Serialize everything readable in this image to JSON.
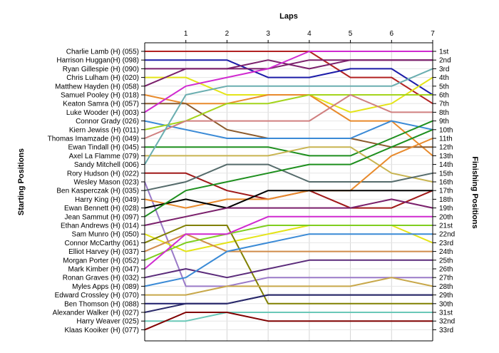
{
  "chart_data": {
    "type": "line",
    "title": "",
    "xlabel": "Laps",
    "ylabel_left": "Starting Positions",
    "ylabel_right": "Finishing Positions",
    "x": [
      0,
      1,
      2,
      3,
      4,
      5,
      6,
      7
    ],
    "x_ticks": [
      "1",
      "2",
      "3",
      "4",
      "5",
      "6",
      "7"
    ],
    "xlim": [
      0,
      7
    ],
    "ylim": [
      1,
      33
    ],
    "grid": true,
    "finishing_labels": [
      "1st",
      "2nd",
      "3rd",
      "4th",
      "5th",
      "6th",
      "7th",
      "8th",
      "9th",
      "10th",
      "11th",
      "12th",
      "13th",
      "14th",
      "15th",
      "16th",
      "17th",
      "18th",
      "19th",
      "20th",
      "21st",
      "22nd",
      "23rd",
      "24th",
      "25th",
      "26th",
      "27th",
      "28th",
      "29th",
      "30th",
      "31st",
      "32nd",
      "33rd"
    ],
    "series": [
      {
        "name": "Charlie Lamb (H) (055)",
        "color": "#b22222",
        "positions": [
          1,
          1,
          1,
          1,
          1,
          4,
          4,
          7
        ]
      },
      {
        "name": "Harrison Huggan(H) (098)",
        "color": "#1c1ca8",
        "positions": [
          2,
          2,
          2,
          4,
          4,
          3,
          3,
          6
        ]
      },
      {
        "name": "Ryan Gillespie (H) (090)",
        "color": "#7a1f6b",
        "positions": [
          3,
          3,
          3,
          2,
          3,
          2,
          2,
          2
        ]
      },
      {
        "name": "Chris Lulham (H) (020)",
        "color": "#e4e418",
        "positions": [
          4,
          4,
          6,
          6,
          6,
          8,
          7,
          4
        ]
      },
      {
        "name": "Matthew Hayden (H) (058)",
        "color": "#7a1f6b",
        "positions": [
          5,
          3,
          3,
          3,
          2,
          2,
          2,
          2
        ]
      },
      {
        "name": "Samuel Pooley (H) (018)",
        "color": "#e88a2c",
        "positions": [
          6,
          7,
          7,
          6,
          6,
          9,
          9,
          13
        ]
      },
      {
        "name": "Keaton Samra (H) (057)",
        "color": "#8b5a2b",
        "positions": [
          7,
          7,
          10,
          11,
          11,
          11,
          12,
          12
        ]
      },
      {
        "name": "Luke Wooder (H) (003)",
        "color": "#d02ad0",
        "positions": [
          8,
          5,
          4,
          3,
          1,
          1,
          1,
          1
        ]
      },
      {
        "name": "Connor Grady (026)",
        "color": "#3a8ad6",
        "positions": [
          9,
          10,
          11,
          11,
          11,
          11,
          9,
          10
        ]
      },
      {
        "name": "Kiern Jewiss (H) (011)",
        "color": "#a4d41c",
        "positions": [
          10,
          9,
          7,
          7,
          6,
          6,
          6,
          6
        ]
      },
      {
        "name": "Thomas Imamzade (H) (049)",
        "color": "#d08080",
        "positions": [
          11,
          9,
          9,
          9,
          9,
          6,
          8,
          8
        ]
      },
      {
        "name": "Ewan Tindall (H) (045)",
        "color": "#1e8f1e",
        "positions": [
          12,
          12,
          12,
          12,
          13,
          13,
          11,
          9
        ]
      },
      {
        "name": "Axel La Flamme (079)",
        "color": "#c8b450",
        "positions": [
          13,
          13,
          13,
          13,
          12,
          12,
          15,
          16
        ]
      },
      {
        "name": "Sandy Mitchell (006)",
        "color": "#6aaeb0",
        "positions": [
          14,
          6,
          5,
          5,
          5,
          5,
          5,
          3
        ]
      },
      {
        "name": "Rory Hudson (H) (022)",
        "color": "#a01818",
        "positions": [
          15,
          15,
          17,
          18,
          17,
          19,
          19,
          17
        ]
      },
      {
        "name": "Wesley Mason (023)",
        "color": "#9a7ac8",
        "positions": [
          16,
          28,
          28,
          27,
          27,
          27,
          27,
          27
        ]
      },
      {
        "name": "Ben Kasperczak (H) (035)",
        "color": "#556b6b",
        "positions": [
          17,
          16,
          14,
          14,
          16,
          16,
          16,
          15
        ]
      },
      {
        "name": "Harry King (H) (049)",
        "color": "#e88a2c",
        "positions": [
          18,
          19,
          18,
          18,
          17,
          17,
          13,
          11
        ]
      },
      {
        "name": "Ewan Bennett (H) (028)",
        "color": "#000000",
        "positions": [
          19,
          18,
          19,
          17,
          17,
          17,
          17,
          17
        ]
      },
      {
        "name": "Jean Sammut (H) (097)",
        "color": "#1e8f1e",
        "positions": [
          20,
          17,
          16,
          15,
          14,
          14,
          12,
          10
        ]
      },
      {
        "name": "Ethan Andrews (H) (014)",
        "color": "#7a1f6b",
        "positions": [
          21,
          20,
          19,
          19,
          19,
          19,
          18,
          19
        ]
      },
      {
        "name": "Sam Munro (H) (050)",
        "color": "#e4e418",
        "positions": [
          22,
          24,
          23,
          22,
          21,
          21,
          21,
          23
        ]
      },
      {
        "name": "Connor McCarthy (061)",
        "color": "#808000",
        "positions": [
          23,
          21,
          21,
          30,
          30,
          30,
          30,
          30
        ]
      },
      {
        "name": "Elliot Harvey (H) (037)",
        "color": "#d08c4a",
        "positions": [
          24,
          22,
          24,
          24,
          24,
          24,
          24,
          24
        ]
      },
      {
        "name": "Morgan Porter (H) (052)",
        "color": "#7fce1f",
        "positions": [
          25,
          23,
          22,
          21,
          21,
          21,
          21,
          21
        ]
      },
      {
        "name": "Mark Kimber (H) (047)",
        "color": "#d02ad0",
        "positions": [
          26,
          22,
          22,
          20,
          20,
          20,
          20,
          20
        ]
      },
      {
        "name": "Ronan Graves (H) (032)",
        "color": "#5a2a7a",
        "positions": [
          27,
          26,
          27,
          26,
          25,
          25,
          25,
          25
        ]
      },
      {
        "name": "Myles Apps (H) (089)",
        "color": "#3a8ad6",
        "positions": [
          28,
          27,
          24,
          23,
          22,
          22,
          22,
          22
        ]
      },
      {
        "name": "Edward Crossley (H) (070)",
        "color": "#c8a84a",
        "positions": [
          29,
          29,
          28,
          28,
          28,
          28,
          27,
          28
        ]
      },
      {
        "name": "Ben Thomson (H) (088)",
        "color": "#1c1c6a",
        "positions": [
          30,
          30,
          30,
          29,
          29,
          29,
          29,
          29
        ]
      },
      {
        "name": "Alexander Walker (H) (027)",
        "color": "#2a2a6a",
        "positions": [
          31,
          30,
          30,
          29,
          29,
          29,
          29,
          29
        ]
      },
      {
        "name": "Harry Weaver (025)",
        "color": "#6ac8b8",
        "positions": [
          32,
          32,
          31,
          31,
          31,
          31,
          31,
          31
        ]
      },
      {
        "name": "Klaas Kooiker (H) (077)",
        "color": "#800000",
        "positions": [
          33,
          31,
          31,
          32,
          32,
          32,
          32,
          32
        ]
      }
    ]
  }
}
